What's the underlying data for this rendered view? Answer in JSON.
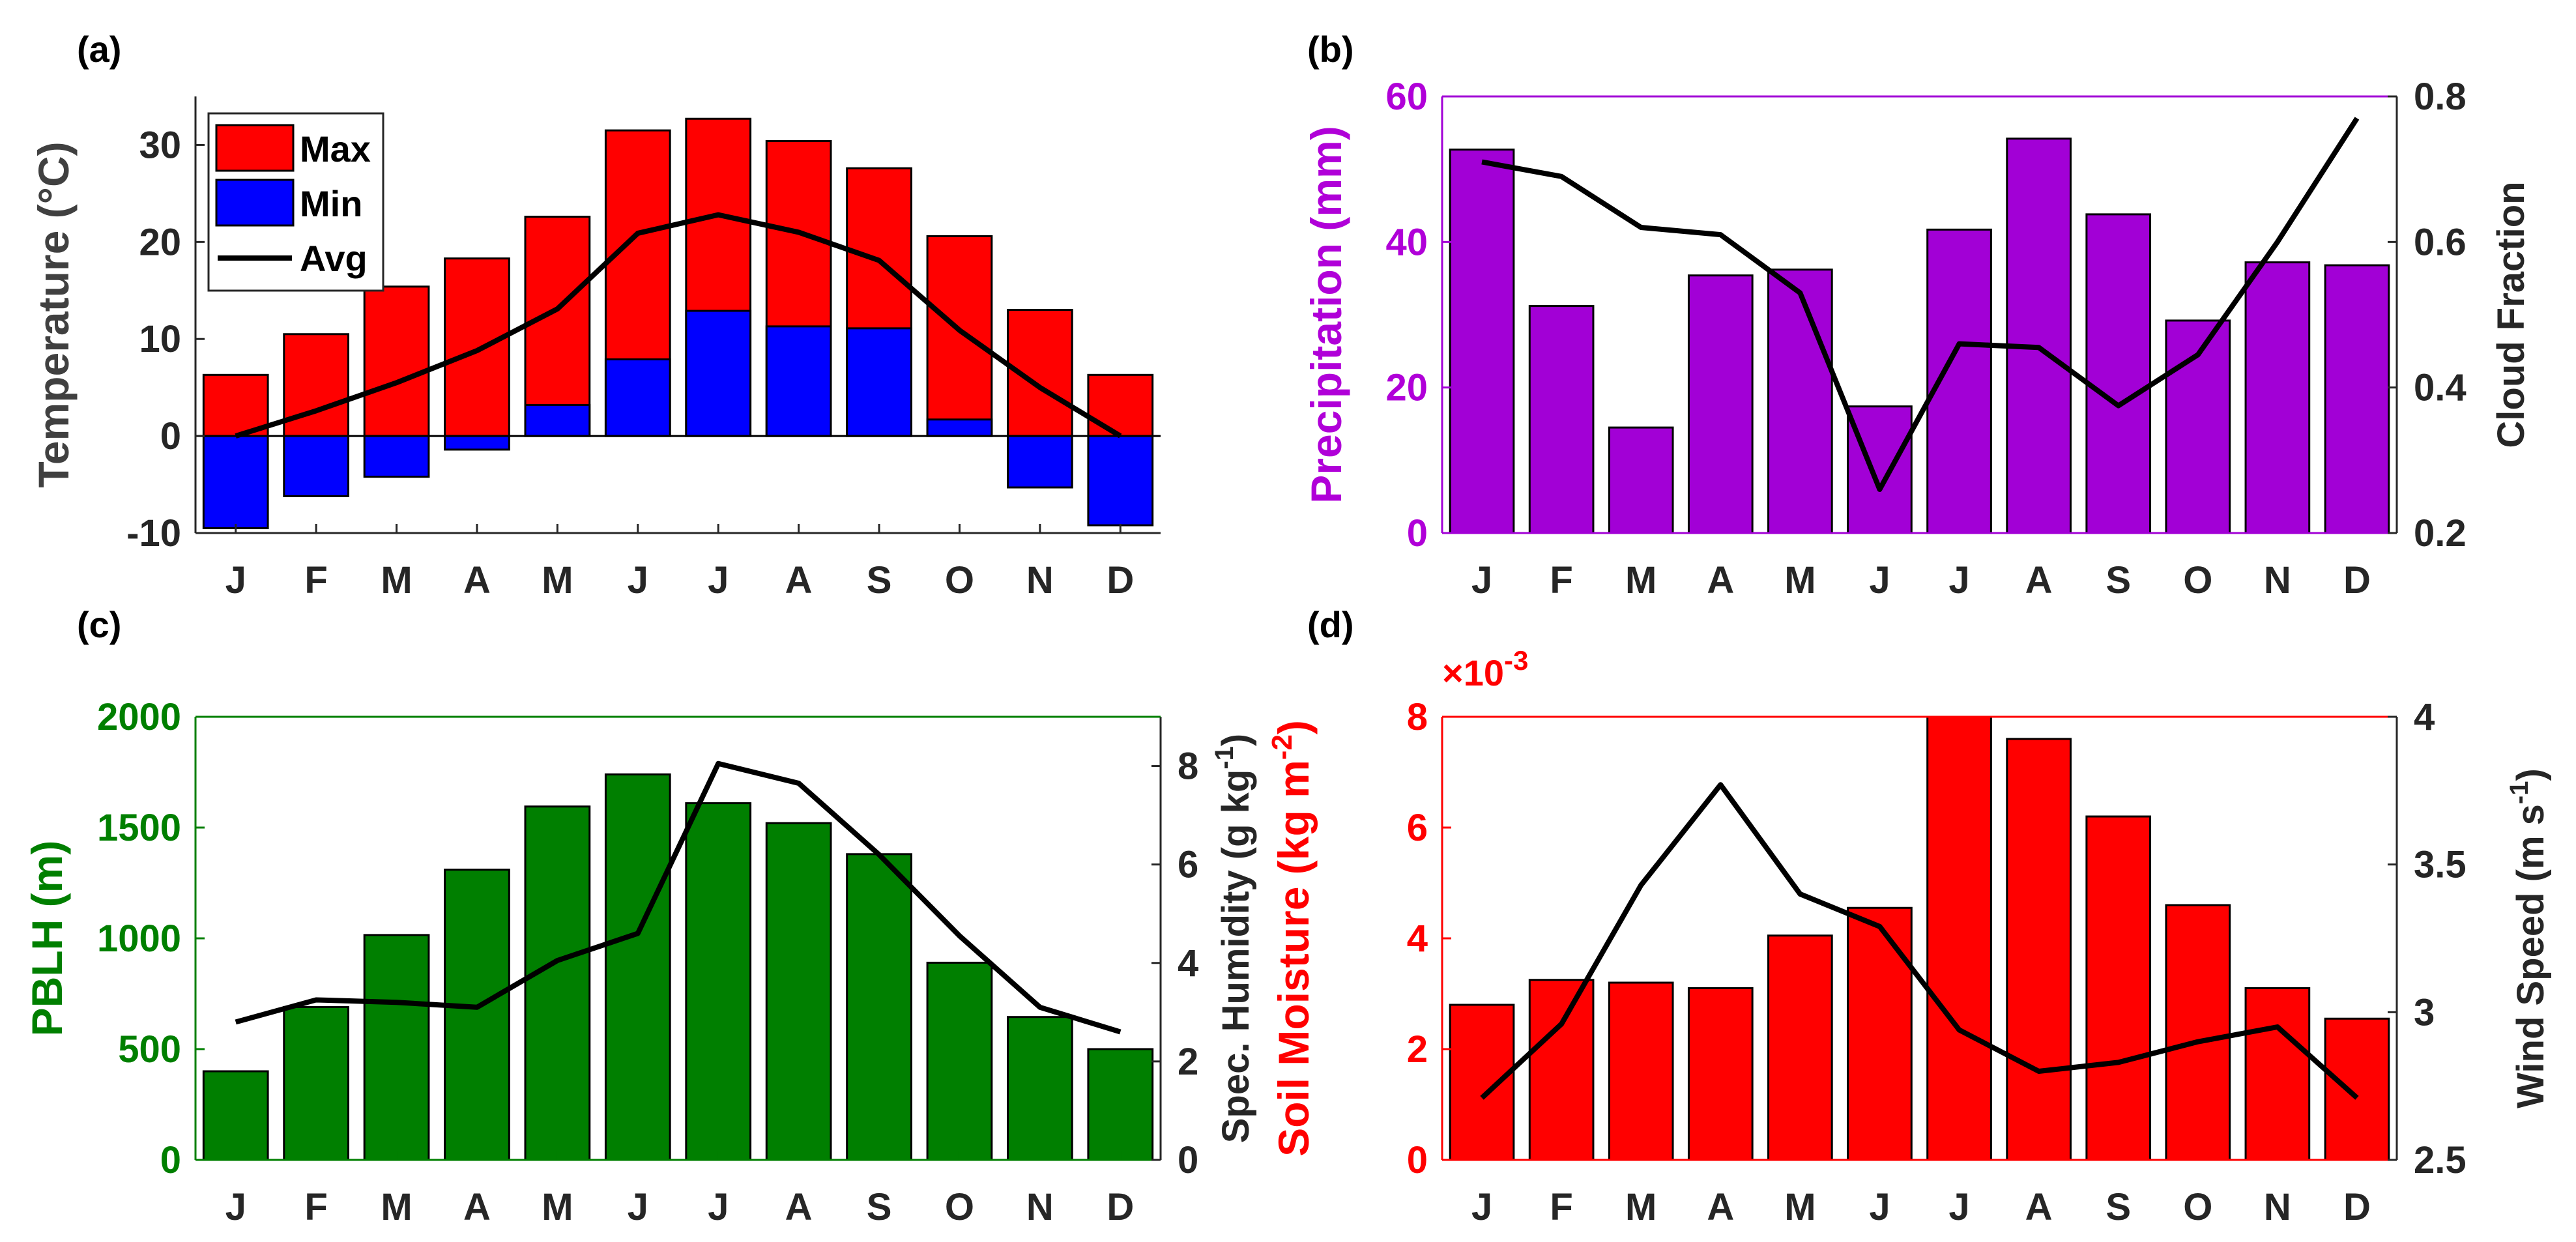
{
  "chart_data": [
    {
      "panel_label": "(a)",
      "type": "bar",
      "categories": [
        "J",
        "F",
        "M",
        "A",
        "M",
        "J",
        "J",
        "A",
        "S",
        "O",
        "N",
        "D"
      ],
      "series": [
        {
          "name": "Max",
          "kind": "bar",
          "color": "#ff0000",
          "values": [
            6.3,
            10.5,
            15.4,
            18.3,
            22.6,
            31.5,
            32.7,
            30.4,
            27.6,
            20.6,
            13.0,
            6.3
          ]
        },
        {
          "name": "Min",
          "kind": "bar",
          "color": "#0000ff",
          "values": [
            -9.5,
            -6.2,
            -4.2,
            -1.4,
            3.2,
            7.9,
            12.9,
            11.3,
            11.1,
            1.7,
            -5.3,
            -9.2
          ]
        },
        {
          "name": "Avg",
          "kind": "line",
          "color": "#000000",
          "values": [
            0.0,
            2.6,
            5.5,
            8.8,
            13.1,
            20.9,
            22.8,
            21.0,
            18.1,
            10.9,
            5.0,
            0.0
          ]
        }
      ],
      "ylabel": "Temperature (°C)",
      "ylim": [
        -10,
        35
      ],
      "yticks": [
        -10,
        0,
        10,
        20,
        30
      ],
      "ytick_labels": [
        "-10",
        "0",
        "10",
        "20",
        "30"
      ],
      "legend": {
        "placement": "top-left",
        "entries": [
          "Max",
          "Min",
          "Avg"
        ]
      },
      "axis_color": "#262626"
    },
    {
      "panel_label": "(b)",
      "type": "bar",
      "categories": [
        "J",
        "F",
        "M",
        "A",
        "M",
        "J",
        "J",
        "A",
        "S",
        "O",
        "N",
        "D"
      ],
      "series": [
        {
          "name": "Precipitation",
          "kind": "bar",
          "axis": "left",
          "color": "#a200d6",
          "values": [
            52.7,
            31.2,
            14.5,
            35.4,
            36.2,
            17.4,
            41.7,
            54.2,
            43.8,
            29.2,
            37.2,
            36.8
          ]
        },
        {
          "name": "Cloud Fraction",
          "kind": "line",
          "axis": "right",
          "color": "#000000",
          "values": [
            0.71,
            0.69,
            0.62,
            0.61,
            0.53,
            0.26,
            0.46,
            0.455,
            0.375,
            0.445,
            0.6,
            0.77
          ]
        }
      ],
      "ylabel": "Precipitation (mm)",
      "ylabel_color": "#b000d8",
      "ylim": [
        0,
        60
      ],
      "yticks": [
        0,
        20,
        40,
        60
      ],
      "ytick_labels": [
        "0",
        "20",
        "40",
        "60"
      ],
      "y2label": "Cloud Fraction",
      "y2label_color": "#262626",
      "y2lim": [
        0.2,
        0.8
      ],
      "y2ticks": [
        0.2,
        0.4,
        0.6,
        0.8
      ],
      "y2tick_labels": [
        "0.2",
        "0.4",
        "0.6",
        "0.8"
      ],
      "axis_color": "#a200d6",
      "axis2_color": "#262626"
    },
    {
      "panel_label": "(c)",
      "type": "bar",
      "categories": [
        "J",
        "F",
        "M",
        "A",
        "M",
        "J",
        "J",
        "A",
        "S",
        "O",
        "N",
        "D"
      ],
      "series": [
        {
          "name": "PBLH",
          "kind": "bar",
          "axis": "left",
          "color": "#007f00",
          "values": [
            400,
            690,
            1015,
            1310,
            1595,
            1740,
            1610,
            1520,
            1380,
            890,
            645,
            500
          ]
        },
        {
          "name": "Spec. Humidity",
          "kind": "line",
          "axis": "right",
          "color": "#000000",
          "values": [
            2.8,
            3.25,
            3.2,
            3.1,
            4.05,
            4.6,
            8.05,
            7.65,
            6.2,
            4.55,
            3.1,
            2.6
          ]
        }
      ],
      "ylabel": "PBLH (m)",
      "ylabel_color": "#007f00",
      "ylim": [
        0,
        2000
      ],
      "yticks": [
        0,
        500,
        1000,
        1500,
        2000
      ],
      "ytick_labels": [
        "0",
        "500",
        "1000",
        "1500",
        "2000"
      ],
      "y2label": "Spec. Humidity (g kg",
      "y2label_suffix": "-1",
      "y2label_close": ")",
      "y2label_color": "#262626",
      "y2lim": [
        0,
        9
      ],
      "y2ticks": [
        0,
        2,
        4,
        6,
        8
      ],
      "y2tick_labels": [
        "0",
        "2",
        "4",
        "6",
        "8"
      ],
      "axis_color": "#007f00",
      "axis2_color": "#262626"
    },
    {
      "panel_label": "(d)",
      "type": "bar",
      "categories": [
        "J",
        "F",
        "M",
        "A",
        "M",
        "J",
        "J",
        "A",
        "S",
        "O",
        "N",
        "D"
      ],
      "series": [
        {
          "name": "Soil Moisture",
          "kind": "bar",
          "axis": "left",
          "color": "#ff0000",
          "values": [
            2.8,
            3.25,
            3.2,
            3.1,
            4.05,
            4.55,
            8.0,
            7.6,
            6.2,
            4.6,
            3.1,
            2.55
          ]
        },
        {
          "name": "Wind Speed",
          "kind": "line",
          "axis": "right",
          "color": "#000000",
          "values": [
            2.71,
            2.96,
            3.43,
            3.77,
            3.4,
            3.29,
            2.94,
            2.8,
            2.83,
            2.9,
            2.95,
            2.71
          ]
        }
      ],
      "ylabel": "Soil Moisture (kg m",
      "ylabel_suffix": "-2",
      "ylabel_close": ")",
      "ylabel_color": "#ff0000",
      "ylim": [
        0,
        8
      ],
      "yticks": [
        0,
        2,
        4,
        6,
        8
      ],
      "ytick_labels": [
        "0",
        "2",
        "4",
        "6",
        "8"
      ],
      "yexponent_base": "×10",
      "yexponent": "-3",
      "y2label": "Wind Speed (m s",
      "y2label_suffix": "-1",
      "y2label_close": ")",
      "y2label_color": "#262626",
      "y2lim": [
        2.5,
        4
      ],
      "y2ticks": [
        2.5,
        3,
        3.5,
        4
      ],
      "y2tick_labels": [
        "2.5",
        "3",
        "3.5",
        "4"
      ],
      "axis_color": "#ff0000",
      "axis2_color": "#262626"
    }
  ]
}
